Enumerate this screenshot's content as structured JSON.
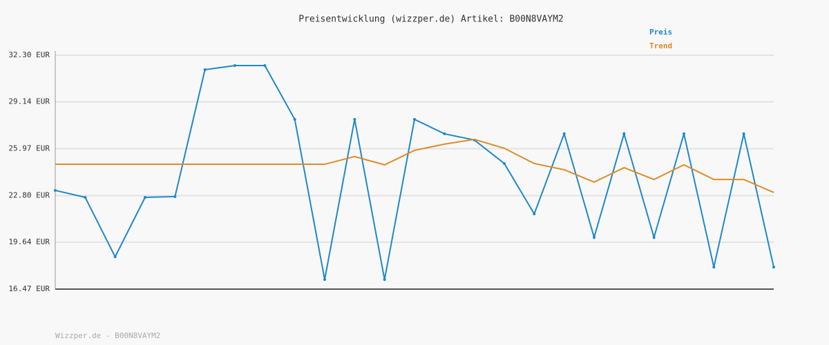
{
  "chart_data": {
    "type": "line",
    "title": "Preisentwicklung (wizzper.de) Artikel: B00N8VAYM2",
    "categories": [
      null,
      null,
      null,
      null,
      null,
      null,
      null,
      null,
      null,
      null,
      null,
      null,
      null,
      null,
      null,
      null,
      null,
      null,
      null,
      null,
      null,
      null,
      null,
      null,
      null
    ],
    "series": [
      {
        "name": "Preis",
        "color": "#1f88c9",
        "values": [
          23.15,
          22.68,
          18.66,
          22.68,
          22.73,
          31.32,
          31.6,
          31.6,
          27.96,
          17.12,
          27.96,
          17.12,
          27.96,
          26.98,
          26.56,
          24.97,
          21.56,
          26.98,
          19.97,
          26.98,
          19.97,
          26.98,
          17.96,
          26.98,
          17.96
        ]
      },
      {
        "name": "Trend",
        "color": "#e08a2a",
        "values": [
          24.92,
          24.92,
          24.92,
          24.92,
          24.92,
          24.92,
          24.92,
          24.92,
          24.92,
          24.92,
          25.44,
          24.88,
          25.86,
          26.28,
          26.6,
          26.0,
          24.97,
          24.55,
          23.71,
          24.69,
          23.89,
          24.88,
          23.89,
          23.89,
          23.01
        ]
      }
    ],
    "ylim": [
      16.47,
      32.3
    ],
    "yticks": [
      {
        "value": 16.47,
        "label": "16.47 EUR"
      },
      {
        "value": 19.64,
        "label": "19.64 EUR"
      },
      {
        "value": 22.8,
        "label": "22.80 EUR"
      },
      {
        "value": 25.97,
        "label": "25.97 EUR"
      },
      {
        "value": 29.14,
        "label": "29.14 EUR"
      },
      {
        "value": 32.3,
        "label": "32.30 EUR"
      }
    ],
    "grid": true,
    "legend": "top-right",
    "footer": "Wizzper.de - B00N8VAYM2"
  }
}
